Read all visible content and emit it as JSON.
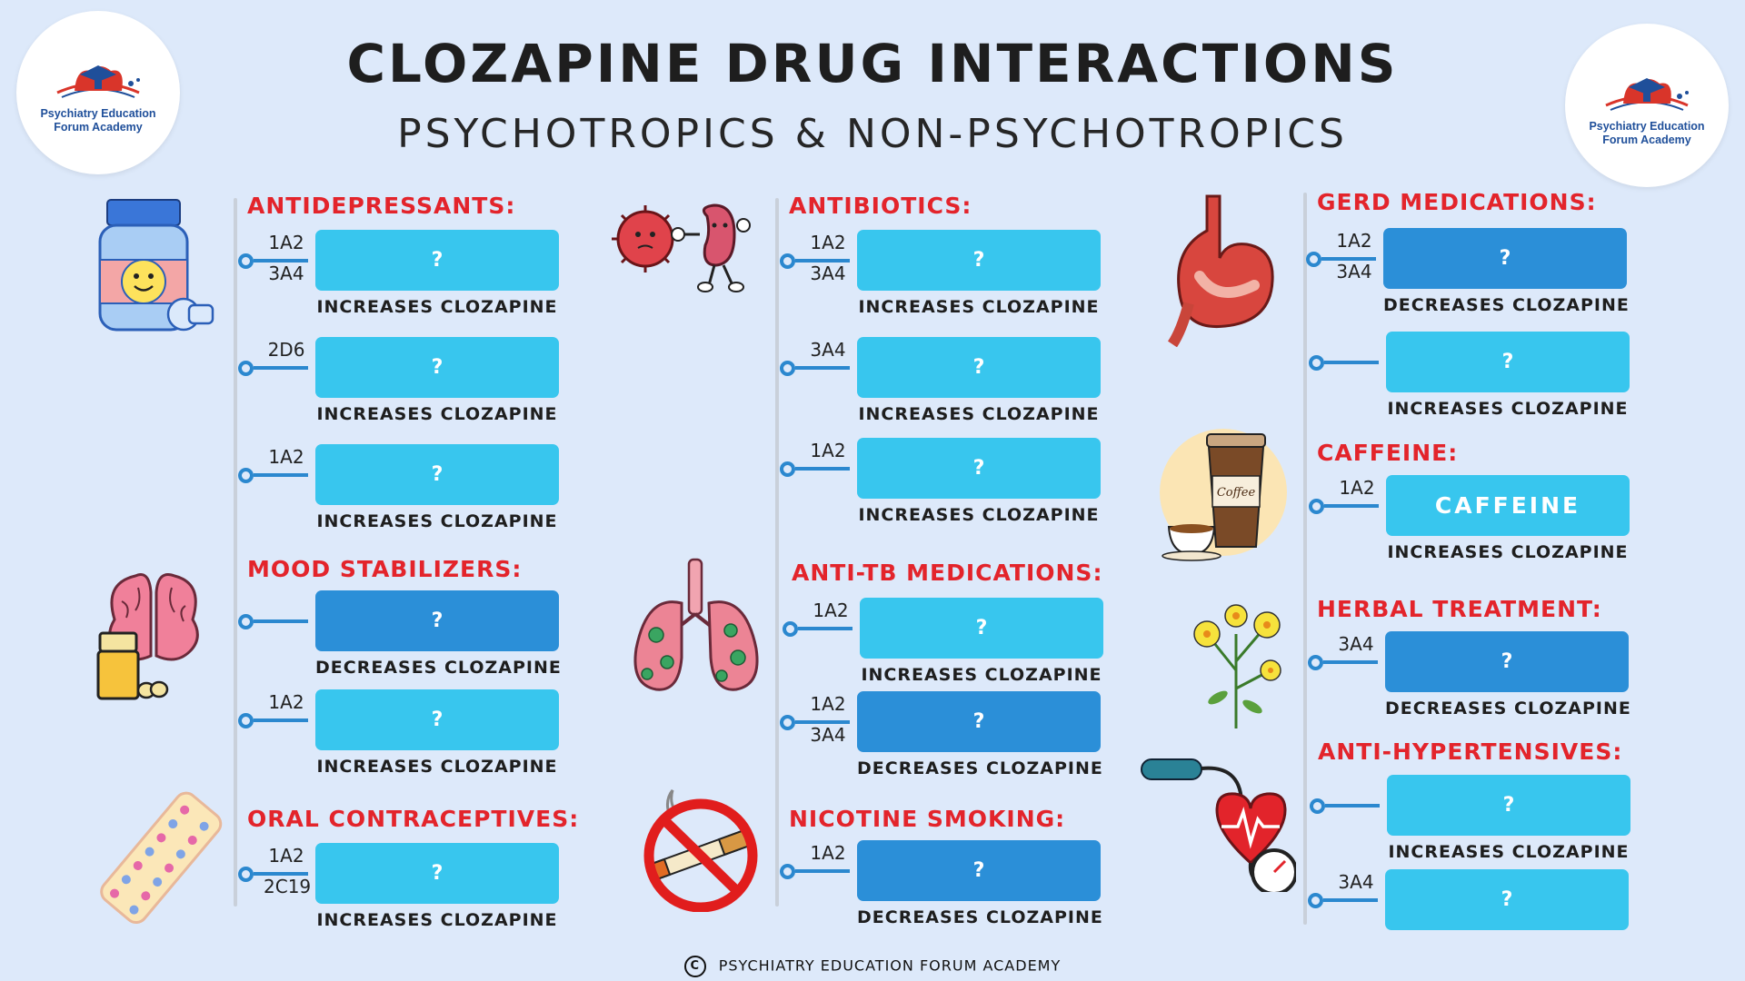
{
  "header": {
    "title": "CLOZAPINE DRUG INTERACTIONS",
    "subtitle": "PSYCHOTROPICS & NON-PSYCHOTROPICS"
  },
  "logo": {
    "line1": "Psychiatry Education",
    "line2": "Forum Academy"
  },
  "colors": {
    "background": "#dde9fa",
    "heading": "#e3242b",
    "box_increase": "#38c6ee",
    "box_decrease": "#2b8fd8",
    "connector": "#2b88cf"
  },
  "sections": {
    "antidepressants": {
      "heading": "ANTIDEPRESSANTS:",
      "entries": [
        {
          "cyp1": "1A2",
          "cyp2": "3A4",
          "label": "?",
          "effect": "INCREASES CLOZAPINE"
        },
        {
          "cyp1": "2D6",
          "cyp2": "",
          "label": "?",
          "effect": "INCREASES CLOZAPINE"
        },
        {
          "cyp1": "1A2",
          "cyp2": "",
          "label": "?",
          "effect": "INCREASES CLOZAPINE"
        }
      ]
    },
    "mood_stabilizers": {
      "heading": "MOOD STABILIZERS:",
      "entries": [
        {
          "cyp1": "",
          "cyp2": "",
          "label": "?",
          "effect": "DECREASES CLOZAPINE"
        },
        {
          "cyp1": "1A2",
          "cyp2": "",
          "label": "?",
          "effect": "INCREASES CLOZAPINE"
        }
      ]
    },
    "oral_contraceptives": {
      "heading": "ORAL CONTRACEPTIVES:",
      "entries": [
        {
          "cyp1": "1A2",
          "cyp2": "2C19",
          "label": "?",
          "effect": "INCREASES CLOZAPINE"
        }
      ]
    },
    "antibiotics": {
      "heading": "ANTIBIOTICS:",
      "entries": [
        {
          "cyp1": "1A2",
          "cyp2": "3A4",
          "label": "?",
          "effect": "INCREASES CLOZAPINE"
        },
        {
          "cyp1": "3A4",
          "cyp2": "",
          "label": "?",
          "effect": "INCREASES CLOZAPINE"
        },
        {
          "cyp1": "1A2",
          "cyp2": "",
          "label": "?",
          "effect": "INCREASES CLOZAPINE"
        }
      ]
    },
    "anti_tb": {
      "heading": "ANTI-TB MEDICATIONS:",
      "entries": [
        {
          "cyp1": "1A2",
          "cyp2": "",
          "label": "?",
          "effect": "INCREASES CLOZAPINE"
        },
        {
          "cyp1": "1A2",
          "cyp2": "3A4",
          "label": "?",
          "effect": "DECREASES CLOZAPINE"
        }
      ]
    },
    "nicotine": {
      "heading": "NICOTINE SMOKING:",
      "entries": [
        {
          "cyp1": "1A2",
          "cyp2": "",
          "label": "?",
          "effect": "DECREASES CLOZAPINE"
        }
      ]
    },
    "gerd": {
      "heading": "GERD MEDICATIONS:",
      "entries": [
        {
          "cyp1": "1A2",
          "cyp2": "3A4",
          "label": "?",
          "effect": "DECREASES CLOZAPINE"
        },
        {
          "cyp1": "",
          "cyp2": "",
          "label": "?",
          "effect": "INCREASES CLOZAPINE"
        }
      ]
    },
    "caffeine": {
      "heading": "CAFFEINE:",
      "entries": [
        {
          "cyp1": "1A2",
          "cyp2": "",
          "label": "CAFFEINE",
          "effect": "INCREASES CLOZAPINE"
        }
      ]
    },
    "herbal": {
      "heading": "HERBAL TREATMENT:",
      "entries": [
        {
          "cyp1": "3A4",
          "cyp2": "",
          "label": "?",
          "effect": "DECREASES CLOZAPINE"
        }
      ]
    },
    "antihypertensives": {
      "heading": "ANTI-HYPERTENSIVES:",
      "entries": [
        {
          "cyp1": "",
          "cyp2": "",
          "label": "?",
          "effect": "INCREASES CLOZAPINE"
        },
        {
          "cyp1": "3A4",
          "cyp2": "",
          "label": "?",
          "effect": ""
        }
      ]
    }
  },
  "illustration_icons": [
    "pill-bottle-icon",
    "brain-icon",
    "pill-blister-icon",
    "virus-vs-kidney-icon",
    "lungs-icon",
    "no-smoking-icon",
    "stomach-icon",
    "coffee-icon",
    "st-johns-wort-icon",
    "blood-pressure-heart-icon"
  ],
  "footer": {
    "copyright_symbol": "C",
    "text": "PSYCHIATRY EDUCATION FORUM ACADEMY"
  }
}
